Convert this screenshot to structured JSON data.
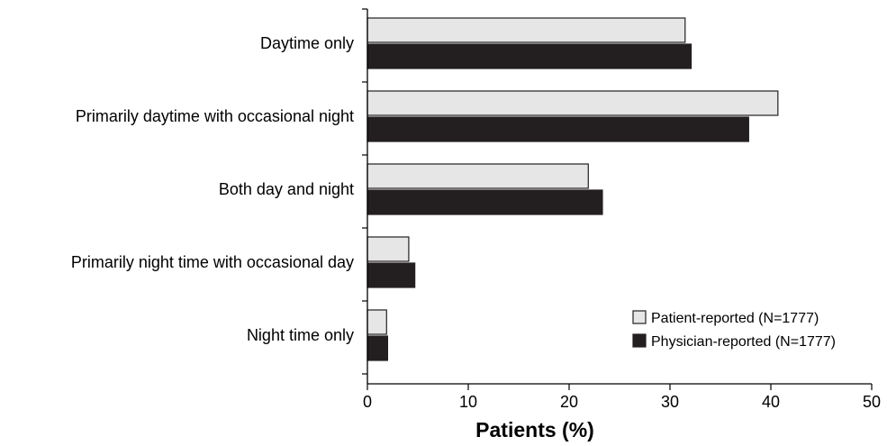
{
  "chart_data": {
    "type": "bar",
    "orientation": "horizontal",
    "categories": [
      "Daytime only",
      "Primarily daytime with occasional night",
      "Both day and night",
      "Primarily night time with occasional day",
      "Night time only"
    ],
    "series": [
      {
        "name": "Patient-reported (N=1777)",
        "color": "#e6e6e6",
        "values": [
          31.5,
          40.7,
          21.9,
          4.1,
          1.9
        ]
      },
      {
        "name": "Physician-reported (N=1777)",
        "color": "#231f20",
        "values": [
          32.1,
          37.8,
          23.3,
          4.7,
          2.0
        ]
      }
    ],
    "xlabel": "Patients (%)",
    "xlim": [
      0,
      50
    ],
    "xticks": [
      0,
      10,
      20,
      30,
      40,
      50
    ],
    "legend_position": "bottom-right",
    "grid": false
  }
}
